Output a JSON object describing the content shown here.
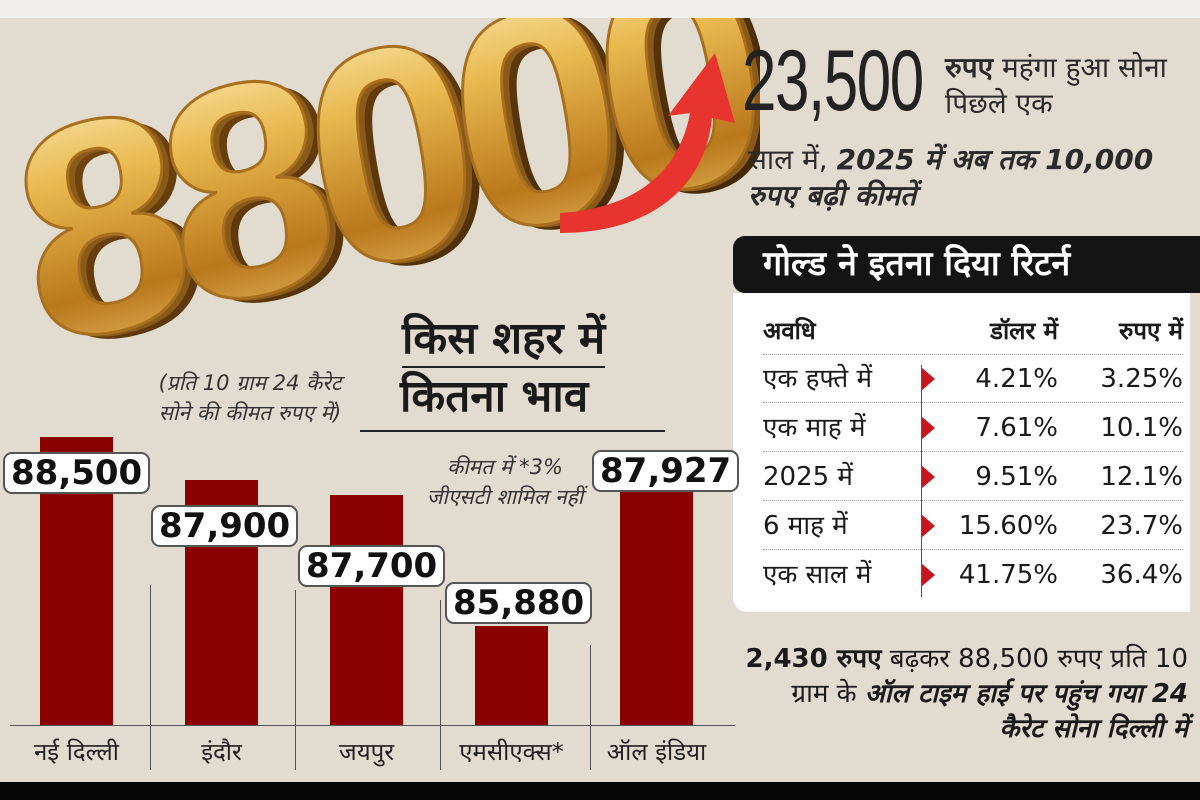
{
  "hero": {
    "big_number": "88000",
    "gold_color": "#d9a441",
    "arrow_color": "#e8342e",
    "arrow_icon": "curved-up-arrow"
  },
  "headline": {
    "amount": "23,500",
    "line1_bold": "रुपए",
    "line1_rest": " महंगा हुआ सोना पिछले एक",
    "line2_plain": "साल में, ",
    "line2_bold": "2025 में अब तक 10,000 रुपए बढ़ी कीमतें"
  },
  "returns_table": {
    "title": "गोल्ड ने इतना दिया रिटर्न",
    "headers": [
      "अवधि",
      "डॉलर में",
      "रुपए में"
    ],
    "rows": [
      [
        "एक हफ्ते में",
        "4.21%",
        "3.25%"
      ],
      [
        "एक माह में",
        "7.61%",
        "10.1%"
      ],
      [
        "2025 में",
        "9.51%",
        "12.1%"
      ],
      [
        "6 माह में",
        "15.60%",
        "23.7%"
      ],
      [
        "एक साल में",
        "41.75%",
        "36.4%"
      ]
    ],
    "marker_color": "#c4161c"
  },
  "footer_note": {
    "bold_lead": "2,430 रुपए",
    "plain1": " बढ़कर 88,500 रुपए प्रति 10 ग्राम के ",
    "bold_italic": "ऑल टाइम हाई पर पहुंच गया 24 कैरेट सोना दिल्ली में"
  },
  "chart_data": {
    "type": "bar",
    "title": "किस शहर में कितना भाव",
    "subtitle": "(प्रति 10 ग्राम 24 कैरेट सोने की कीमत रुपए में)",
    "annotation": "कीमत में *3% जीएसटी शामिल नहीं",
    "categories": [
      "नई दिल्ली",
      "इंदौर",
      "जयपुर",
      "एमसीएक्स*",
      "ऑल इंडिया"
    ],
    "values": [
      88500,
      87900,
      87700,
      85880,
      87927
    ],
    "value_labels": [
      "88,500",
      "87,900",
      "87,700",
      "85,880",
      "87,927"
    ],
    "ylim": [
      84500,
      88500
    ],
    "bar_color": "#8b0000",
    "grid": false
  }
}
